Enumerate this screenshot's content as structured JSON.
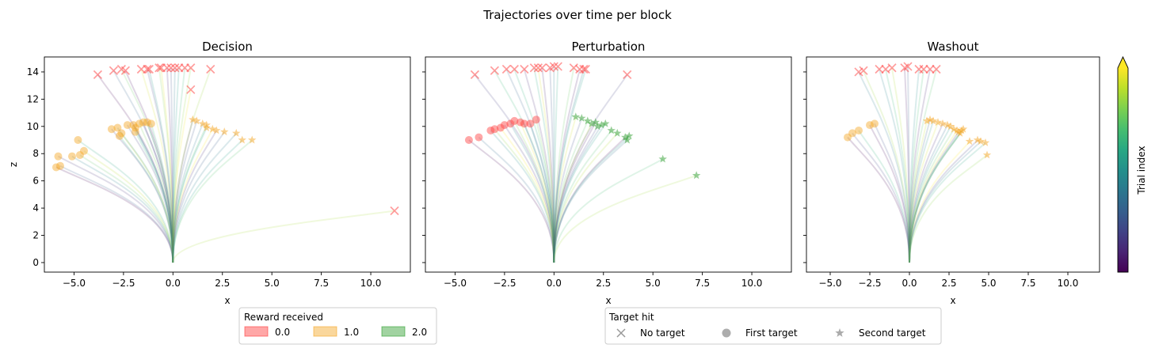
{
  "chart_data": {
    "type": "scatter",
    "title": "Trajectories over time per block",
    "x_ticks": [
      -5.0,
      -2.5,
      0.0,
      2.5,
      5.0,
      7.5,
      10.0
    ],
    "y_ticks": [
      0,
      2,
      4,
      6,
      8,
      10,
      12,
      14
    ],
    "xlim": [
      -6.5,
      12.0
    ],
    "ylim": [
      -0.7,
      15.1
    ],
    "xlabel": "x",
    "ylabel": "z",
    "grid": false,
    "colorbar": {
      "label": "Trial index",
      "colormap": "viridis",
      "extend": "max",
      "ticks": []
    },
    "marker_colors": {
      "0.0": "#ff3b3b",
      "1.0": "#f5a623",
      "2.0": "#2e9e2e"
    },
    "panels": [
      {
        "title": "Decision",
        "no_target": [
          [
            -3.8,
            13.8
          ],
          [
            -3.0,
            14.1
          ],
          [
            -2.6,
            14.2
          ],
          [
            -2.4,
            14.1
          ],
          [
            -1.6,
            14.2
          ],
          [
            -1.3,
            14.2
          ],
          [
            -1.2,
            14.2
          ],
          [
            -0.7,
            14.3
          ],
          [
            -0.6,
            14.3
          ],
          [
            -0.3,
            14.3
          ],
          [
            -0.1,
            14.3
          ],
          [
            0.1,
            14.3
          ],
          [
            0.3,
            14.3
          ],
          [
            0.6,
            14.3
          ],
          [
            0.9,
            14.3
          ],
          [
            1.9,
            14.2
          ],
          [
            0.9,
            12.7
          ],
          [
            11.2,
            3.8
          ]
        ],
        "first_target": [
          [
            -5.9,
            7.0
          ],
          [
            -5.7,
            7.1
          ],
          [
            -5.8,
            7.8
          ],
          [
            -5.1,
            7.8
          ],
          [
            -4.7,
            7.9
          ],
          [
            -4.5,
            8.2
          ],
          [
            -4.8,
            9.0
          ],
          [
            -3.1,
            9.8
          ],
          [
            -2.8,
            9.9
          ],
          [
            -2.6,
            9.5
          ],
          [
            -2.7,
            9.3
          ],
          [
            -2.3,
            10.1
          ],
          [
            -2.0,
            10.1
          ],
          [
            -1.7,
            10.2
          ],
          [
            -1.5,
            10.3
          ],
          [
            -1.3,
            10.3
          ],
          [
            -1.1,
            10.2
          ],
          [
            -1.9,
            9.9
          ],
          [
            -1.9,
            9.6
          ]
        ],
        "second_target": [
          [
            1.0,
            10.5
          ],
          [
            1.2,
            10.4
          ],
          [
            1.5,
            10.2
          ],
          [
            1.7,
            9.9
          ],
          [
            2.0,
            9.8
          ],
          [
            2.2,
            9.7
          ],
          [
            2.6,
            9.6
          ],
          [
            3.2,
            9.5
          ],
          [
            3.5,
            9.0
          ],
          [
            4.0,
            9.0
          ],
          [
            1.7,
            10.1
          ]
        ]
      },
      {
        "title": "Perturbation",
        "no_target": [
          [
            -4.0,
            13.8
          ],
          [
            -3.0,
            14.1
          ],
          [
            -2.4,
            14.2
          ],
          [
            -2.0,
            14.2
          ],
          [
            -1.5,
            14.2
          ],
          [
            -1.0,
            14.3
          ],
          [
            -0.8,
            14.3
          ],
          [
            -0.6,
            14.3
          ],
          [
            -0.2,
            14.3
          ],
          [
            0.0,
            14.4
          ],
          [
            0.2,
            14.4
          ],
          [
            1.0,
            14.3
          ],
          [
            1.3,
            14.2
          ],
          [
            1.5,
            14.2
          ],
          [
            1.6,
            14.2
          ],
          [
            3.7,
            13.8
          ]
        ],
        "first_target": [
          [
            -4.3,
            9.0
          ],
          [
            -3.8,
            9.2
          ],
          [
            -3.2,
            9.7
          ],
          [
            -3.0,
            9.8
          ],
          [
            -2.7,
            9.9
          ],
          [
            -2.5,
            10.1
          ],
          [
            -2.2,
            10.2
          ],
          [
            -2.0,
            10.4
          ],
          [
            -1.7,
            10.3
          ],
          [
            -1.5,
            10.2
          ],
          [
            -1.2,
            10.2
          ],
          [
            -0.9,
            10.5
          ]
        ],
        "second_target": [
          [
            1.1,
            10.7
          ],
          [
            1.4,
            10.6
          ],
          [
            1.7,
            10.4
          ],
          [
            1.9,
            10.2
          ],
          [
            2.1,
            10.3
          ],
          [
            2.4,
            10.1
          ],
          [
            2.6,
            10.2
          ],
          [
            2.9,
            9.7
          ],
          [
            3.2,
            9.5
          ],
          [
            3.6,
            9.2
          ],
          [
            3.8,
            9.3
          ],
          [
            3.7,
            9.0
          ],
          [
            5.5,
            7.6
          ],
          [
            7.2,
            6.4
          ],
          [
            2.2,
            10.0
          ]
        ]
      },
      {
        "title": "Washout",
        "no_target": [
          [
            -3.2,
            14.0
          ],
          [
            -2.9,
            14.1
          ],
          [
            -1.9,
            14.2
          ],
          [
            -1.5,
            14.2
          ],
          [
            -1.1,
            14.3
          ],
          [
            -0.3,
            14.3
          ],
          [
            -0.1,
            14.4
          ],
          [
            0.6,
            14.2
          ],
          [
            0.9,
            14.2
          ],
          [
            1.3,
            14.2
          ],
          [
            1.7,
            14.2
          ]
        ],
        "first_target": [
          [
            -3.9,
            9.2
          ],
          [
            -3.6,
            9.5
          ],
          [
            -3.2,
            9.7
          ],
          [
            -2.5,
            10.1
          ],
          [
            -2.2,
            10.2
          ]
        ],
        "second_target": [
          [
            1.1,
            10.4
          ],
          [
            1.3,
            10.5
          ],
          [
            1.5,
            10.4
          ],
          [
            1.8,
            10.3
          ],
          [
            2.1,
            10.2
          ],
          [
            2.4,
            10.1
          ],
          [
            2.6,
            10.0
          ],
          [
            2.8,
            9.8
          ],
          [
            3.0,
            9.7
          ],
          [
            3.2,
            9.5
          ],
          [
            3.3,
            9.7
          ],
          [
            3.4,
            9.8
          ],
          [
            3.8,
            8.9
          ],
          [
            4.3,
            9.0
          ],
          [
            4.5,
            8.9
          ],
          [
            4.8,
            8.8
          ],
          [
            4.9,
            7.9
          ],
          [
            3.1,
            9.6
          ]
        ]
      }
    ],
    "legend_reward": {
      "title": "Reward received",
      "entries": [
        {
          "label": "0.0",
          "color": "#ff3b3b"
        },
        {
          "label": "1.0",
          "color": "#f5a623"
        },
        {
          "label": "2.0",
          "color": "#2e9e2e"
        }
      ]
    },
    "legend_target": {
      "title": "Target hit",
      "entries": [
        {
          "label": "No target",
          "marker": "x"
        },
        {
          "label": "First target",
          "marker": "circle"
        },
        {
          "label": "Second target",
          "marker": "star"
        }
      ]
    }
  }
}
